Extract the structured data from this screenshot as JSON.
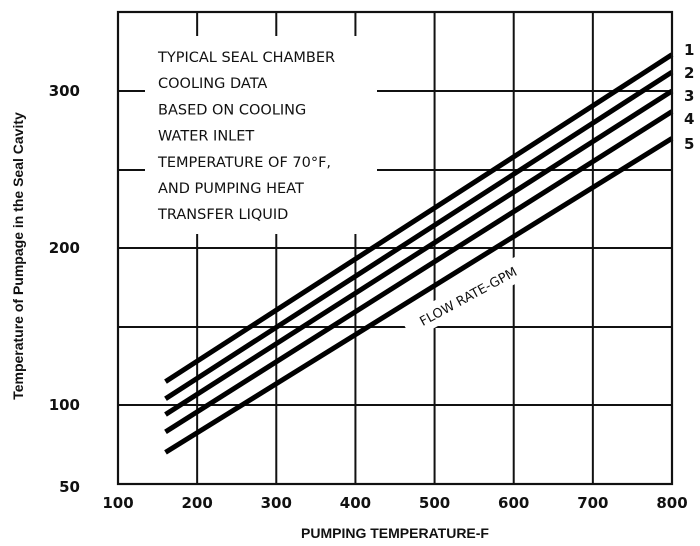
{
  "chart_data": {
    "type": "line",
    "title": "",
    "xlabel": "PUMPING TEMPERATURE-F",
    "ylabel": "Temperature of Pumpage in the Seal Cavity",
    "xlim": [
      100,
      800
    ],
    "ylim": [
      50,
      350
    ],
    "x_ticks": [
      "100",
      "200",
      "300",
      "400",
      "500",
      "600",
      "700",
      "800"
    ],
    "y_ticks": [
      {
        "value": 50,
        "label": "50"
      },
      {
        "value": 100,
        "label": "100"
      },
      {
        "value": 200,
        "label": "200"
      },
      {
        "value": 300,
        "label": "300"
      }
    ],
    "x_grid": [
      200,
      300,
      400,
      500,
      600,
      700
    ],
    "y_grid": [
      100,
      150,
      200,
      250,
      300
    ],
    "grid": true,
    "annotation": [
      "TYPICAL SEAL CHAMBER",
      "COOLING DATA",
      "BASED ON COOLING",
      "WATER INLET",
      "TEMPERATURE OF 70°F,",
      "AND PUMPING HEAT",
      "TRANSFER LIQUID"
    ],
    "curve_label": "FLOW RATE-GPM",
    "series": [
      {
        "name": "1",
        "x": [
          160,
          800
        ],
        "y": [
          115,
          323
        ]
      },
      {
        "name": "2",
        "x": [
          160,
          800
        ],
        "y": [
          104,
          312
        ]
      },
      {
        "name": "3",
        "x": [
          160,
          800
        ],
        "y": [
          94,
          300
        ]
      },
      {
        "name": "4",
        "x": [
          160,
          800
        ],
        "y": [
          83,
          287
        ]
      },
      {
        "name": "5",
        "x": [
          160,
          800
        ],
        "y": [
          70,
          270
        ]
      }
    ]
  }
}
